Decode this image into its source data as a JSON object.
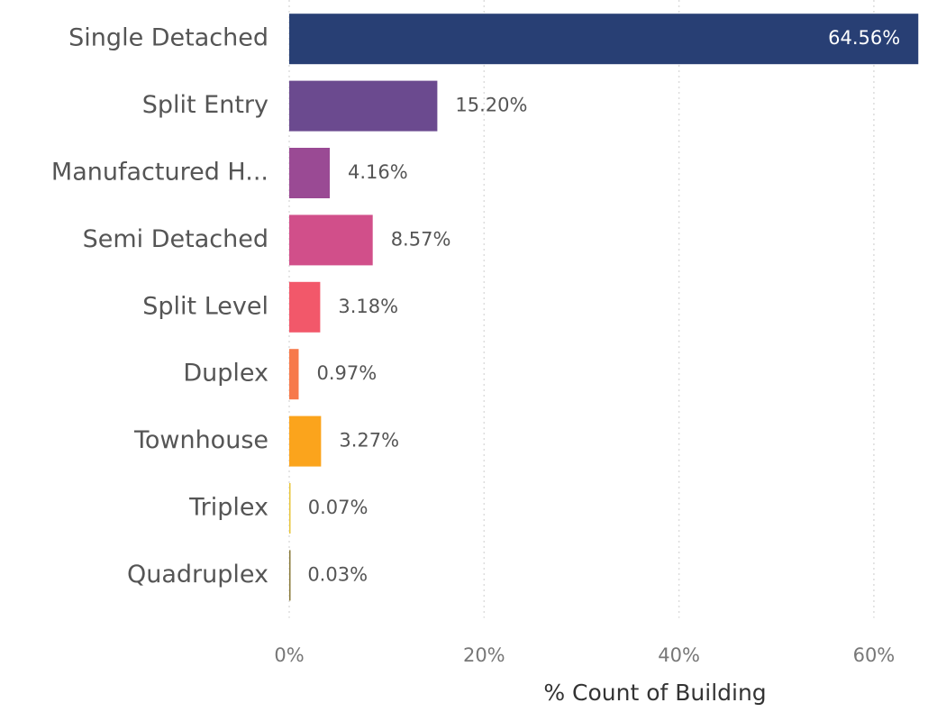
{
  "chart_data": {
    "type": "bar",
    "orientation": "horizontal",
    "x_label": "% Count of Building",
    "categories": [
      "Single Detached",
      "Split Entry",
      "Manufactured H...",
      "Semi Detached",
      "Split Level",
      "Duplex",
      "Townhouse",
      "Triplex",
      "Quadruplex"
    ],
    "values": [
      64.56,
      15.2,
      4.16,
      8.57,
      3.18,
      0.97,
      3.27,
      0.07,
      0.03
    ],
    "value_labels": [
      "64.56%",
      "15.20%",
      "4.16%",
      "8.57%",
      "3.18%",
      "0.97%",
      "3.27%",
      "0.07%",
      "0.03%"
    ],
    "colors": [
      "#283f74",
      "#6b4a8f",
      "#9a4a94",
      "#d14f8a",
      "#f2586a",
      "#f7794a",
      "#fba41c",
      "#e8c53a",
      "#8a7a3a"
    ],
    "xlim": [
      0,
      65
    ],
    "xticks": [
      {
        "value": 0,
        "label": "0%"
      },
      {
        "value": 20,
        "label": "20%"
      },
      {
        "value": 40,
        "label": "40%"
      },
      {
        "value": 60,
        "label": "60%"
      }
    ],
    "grid": true
  }
}
